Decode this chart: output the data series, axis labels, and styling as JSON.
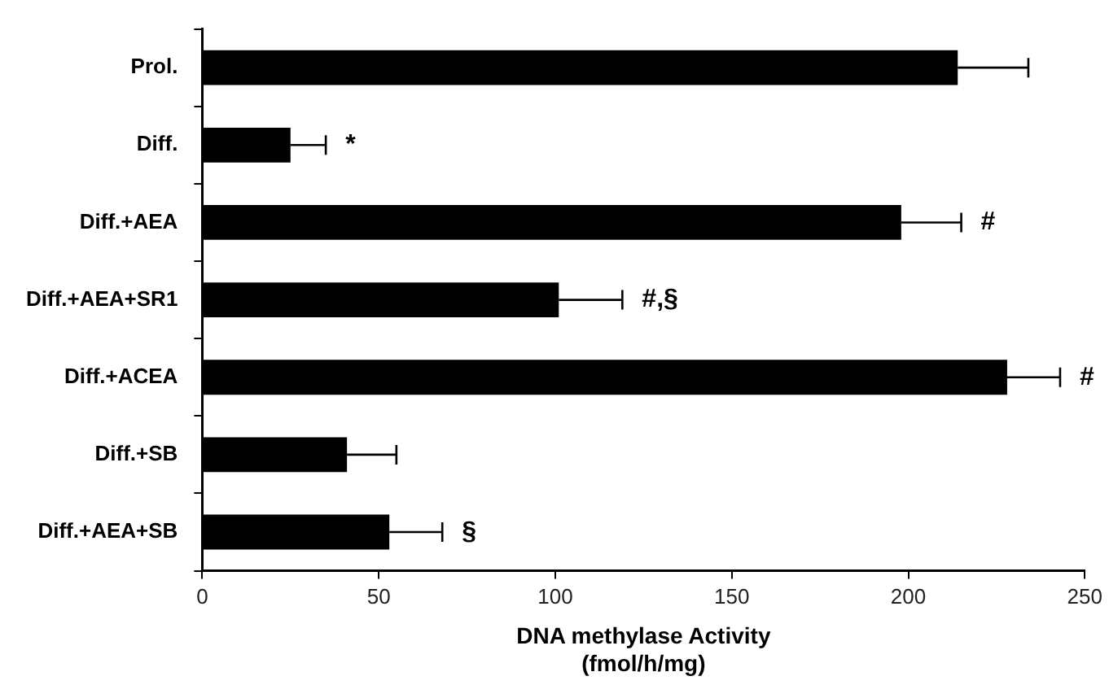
{
  "chart_data": {
    "type": "bar",
    "orientation": "horizontal",
    "xlabel": "DNA methylase Activity\n(fmol/h/mg)",
    "categories": [
      "Prol.",
      "Diff.",
      "Diff.+AEA",
      "Diff.+AEA+SR1",
      "Diff.+ACEA",
      "Diff.+SB",
      "Diff.+AEA+SB"
    ],
    "values": [
      214,
      25,
      198,
      101,
      228,
      41,
      53
    ],
    "errors": [
      [
        214,
        234
      ],
      [
        25,
        35
      ],
      [
        198,
        215
      ],
      [
        101,
        119
      ],
      [
        228,
        243
      ],
      [
        41,
        55
      ],
      [
        53,
        68
      ]
    ],
    "color": "#000000",
    "xlim": [
      0,
      250
    ],
    "xticks": [
      0,
      50,
      100,
      150,
      200,
      250
    ],
    "grid": false,
    "legend": false,
    "annotations": [
      {
        "text": "*",
        "x": 35,
        "y": "Diff."
      },
      {
        "text": "#",
        "x": 215,
        "y": "Diff.+AEA"
      },
      {
        "text": "#,§",
        "x": 119,
        "y": "Diff.+AEA+SR1"
      },
      {
        "text": "#",
        "x": 243,
        "y": "Diff.+ACEA"
      },
      {
        "text": "§",
        "x": 68,
        "y": "Diff.+AEA+SB"
      }
    ]
  }
}
